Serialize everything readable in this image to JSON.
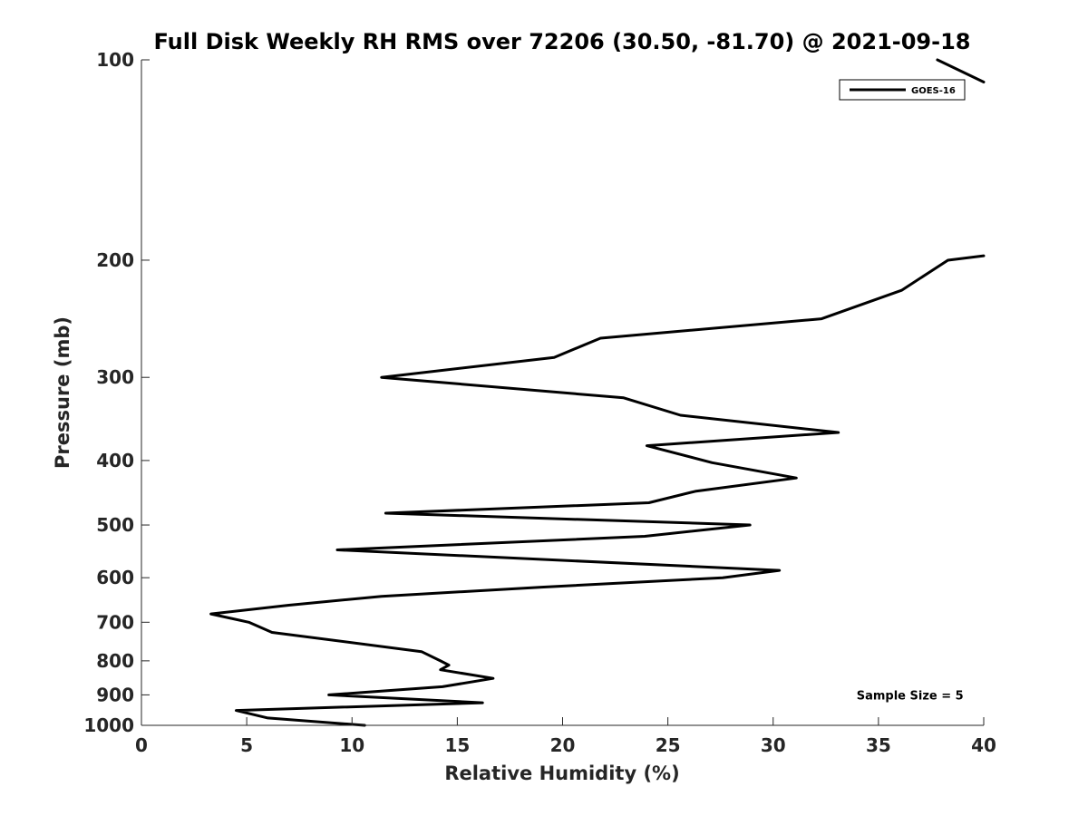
{
  "chart_data": {
    "type": "line",
    "title": "Full Disk Weekly RH RMS over 72206 (30.50, -81.70) @ 2021-09-18",
    "xlabel": "Relative Humidity (%)",
    "ylabel": "Pressure (mb)",
    "xlim": [
      0,
      40
    ],
    "ylim": [
      100,
      1000
    ],
    "y_scale": "log",
    "y_reversed": true,
    "x_ticks": [
      0,
      5,
      10,
      15,
      20,
      25,
      30,
      35,
      40
    ],
    "x_tick_labels": [
      "0",
      "5",
      "10",
      "15",
      "20",
      "25",
      "30",
      "35",
      "40"
    ],
    "y_ticks": [
      100,
      200,
      300,
      400,
      500,
      600,
      700,
      800,
      900,
      1000
    ],
    "y_tick_labels": [
      "100",
      "200",
      "300",
      "400",
      "500",
      "600",
      "700",
      "800",
      "900",
      "1000"
    ],
    "grid": false,
    "legend_position": "top-right",
    "series": [
      {
        "name": "GOES-16",
        "color": "#000000",
        "points": [
          [
            10.6,
            1000
          ],
          [
            6.0,
            975
          ],
          [
            4.5,
            950
          ],
          [
            16.2,
            925
          ],
          [
            8.9,
            900
          ],
          [
            14.3,
            875
          ],
          [
            16.7,
            850
          ],
          [
            14.2,
            825
          ],
          [
            14.6,
            812
          ],
          [
            14.2,
            800
          ],
          [
            13.3,
            775
          ],
          [
            6.2,
            725
          ],
          [
            5.1,
            700
          ],
          [
            3.3,
            680
          ],
          [
            7.0,
            660
          ],
          [
            11.4,
            640
          ],
          [
            19.0,
            620
          ],
          [
            27.6,
            600
          ],
          [
            30.3,
            585
          ],
          [
            9.3,
            545
          ],
          [
            23.9,
            520
          ],
          [
            28.9,
            500
          ],
          [
            11.6,
            480
          ],
          [
            24.1,
            463
          ],
          [
            26.3,
            445
          ],
          [
            31.1,
            425
          ],
          [
            27.1,
            403
          ],
          [
            24.0,
            380
          ],
          [
            33.1,
            363
          ],
          [
            25.6,
            342
          ],
          [
            22.9,
            322
          ],
          [
            11.4,
            300
          ],
          [
            19.6,
            280
          ],
          [
            21.8,
            262
          ],
          [
            32.3,
            245
          ],
          [
            36.1,
            222
          ],
          [
            38.3,
            200
          ],
          [
            40.0,
            197
          ]
        ]
      },
      {
        "name": "",
        "color": "#000000",
        "points": [
          [
            37.8,
            100
          ],
          [
            40.0,
            108
          ]
        ]
      }
    ],
    "annotations": [
      {
        "text": "Sample Size = 5",
        "x": 36.5,
        "y": 900
      }
    ]
  }
}
